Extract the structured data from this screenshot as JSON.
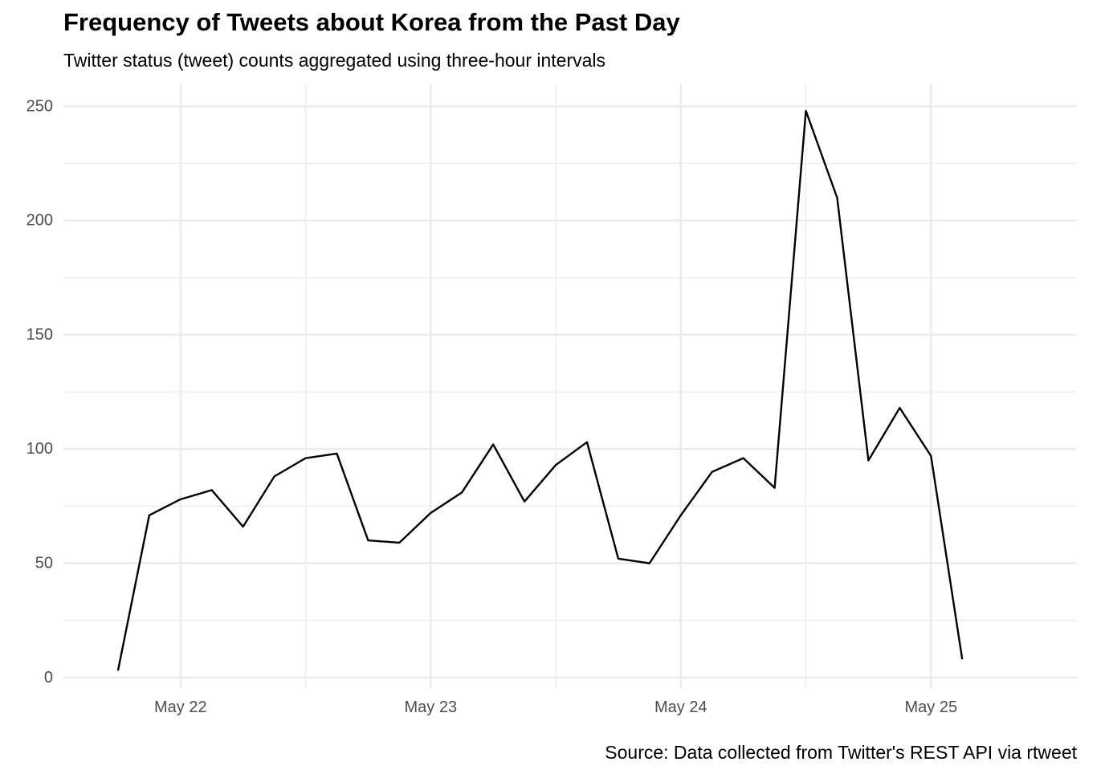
{
  "chart_data": {
    "type": "line",
    "title": "Frequency of Tweets about Korea from the Past Day",
    "subtitle": "Twitter status (tweet) counts aggregated using three-hour intervals",
    "caption": "Source: Data collected from Twitter's REST API via rtweet",
    "xlabel": "",
    "ylabel": "",
    "interval_hours": 3,
    "x_ticks": [
      {
        "x": "2020-05-22",
        "label": "May 22"
      },
      {
        "x": "2020-05-23",
        "label": "May 23"
      },
      {
        "x": "2020-05-24",
        "label": "May 24"
      },
      {
        "x": "2020-05-25",
        "label": "May 25"
      }
    ],
    "y_ticks": [
      0,
      50,
      100,
      150,
      200,
      250
    ],
    "ylim": [
      -5,
      260
    ],
    "xlim": [
      "2020-05-21 12:46",
      "2020-05-25 14:00"
    ],
    "grid": true,
    "line_color": "#000000",
    "grid_color": "#ebebeb",
    "series": [
      {
        "x": [
          "2020-05-21 18:00",
          "2020-05-21 21:00",
          "2020-05-22 00:00",
          "2020-05-22 03:00",
          "2020-05-22 06:00",
          "2020-05-22 09:00",
          "2020-05-22 12:00",
          "2020-05-22 15:00",
          "2020-05-22 18:00",
          "2020-05-22 21:00",
          "2020-05-23 00:00",
          "2020-05-23 03:00",
          "2020-05-23 06:00",
          "2020-05-23 09:00",
          "2020-05-23 12:00",
          "2020-05-23 15:00",
          "2020-05-23 18:00",
          "2020-05-23 21:00",
          "2020-05-24 00:00",
          "2020-05-24 03:00",
          "2020-05-24 06:00",
          "2020-05-24 09:00",
          "2020-05-24 12:00",
          "2020-05-24 15:00",
          "2020-05-24 18:00",
          "2020-05-24 21:00",
          "2020-05-25 00:00",
          "2020-05-25 03:00"
        ],
        "y": [
          3,
          71,
          78,
          82,
          66,
          88,
          96,
          98,
          60,
          59,
          72,
          81,
          102,
          77,
          93,
          103,
          52,
          50,
          71,
          90,
          96,
          83,
          248,
          210,
          95,
          118,
          97,
          8
        ]
      }
    ]
  }
}
